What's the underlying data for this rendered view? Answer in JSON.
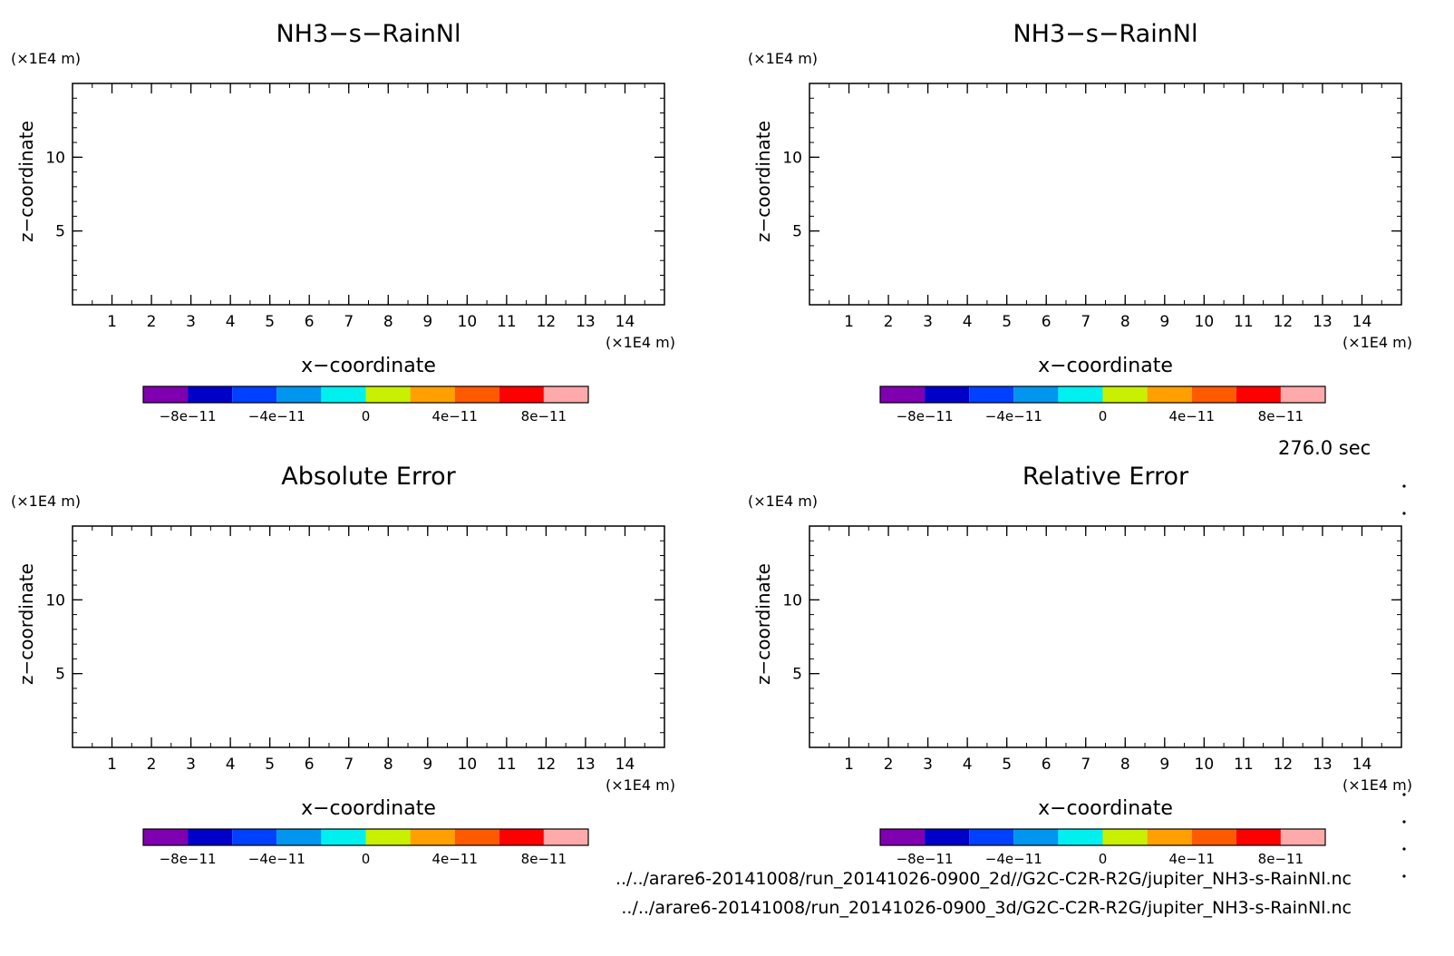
{
  "timestamp": "276.0 sec",
  "files": [
    "../../arare6-20141008/run_20141026-0900_2d//G2C-C2R-R2G/jupiter_NH3-s-RainNl.nc",
    "../../arare6-20141008/run_20141026-0900_3d/G2C-C2R-R2G/jupiter_NH3-s-RainNl.nc"
  ],
  "colorbar": {
    "colors": [
      "#7f00b0",
      "#0000c8",
      "#0040ff",
      "#0096f0",
      "#00f0f0",
      "#c8f000",
      "#ffa000",
      "#ff5a00",
      "#ff0000",
      "#ffaaaa"
    ],
    "labels": [
      "−8e−11",
      "−4e−11",
      "0",
      "4e−11",
      "8e−11"
    ],
    "label_values": [
      -8e-11,
      -4e-11,
      0,
      4e-11,
      8e-11
    ],
    "range": [
      -1e-10,
      1e-10
    ]
  },
  "chart_data": [
    {
      "type": "heatmap",
      "title": "NH3−s−RainNl",
      "xlabel": "x−coordinate",
      "ylabel": "z−coordinate",
      "x_unit": "(×1E4 m)",
      "y_unit": "(×1E4 m)",
      "xlim": [
        0,
        15
      ],
      "ylim": [
        0,
        15
      ],
      "xticks": [
        1,
        2,
        3,
        4,
        5,
        6,
        7,
        8,
        9,
        10,
        11,
        12,
        13,
        14
      ],
      "yticks": [
        5,
        10
      ],
      "values": []
    },
    {
      "type": "heatmap",
      "title": "NH3−s−RainNl",
      "xlabel": "x−coordinate",
      "ylabel": "z−coordinate",
      "x_unit": "(×1E4 m)",
      "y_unit": "(×1E4 m)",
      "xlim": [
        0,
        15
      ],
      "ylim": [
        0,
        15
      ],
      "xticks": [
        1,
        2,
        3,
        4,
        5,
        6,
        7,
        8,
        9,
        10,
        11,
        12,
        13,
        14
      ],
      "yticks": [
        5,
        10
      ],
      "values": []
    },
    {
      "type": "heatmap",
      "title": "Absolute Error",
      "xlabel": "x−coordinate",
      "ylabel": "z−coordinate",
      "x_unit": "(×1E4 m)",
      "y_unit": "(×1E4 m)",
      "xlim": [
        0,
        15
      ],
      "ylim": [
        0,
        15
      ],
      "xticks": [
        1,
        2,
        3,
        4,
        5,
        6,
        7,
        8,
        9,
        10,
        11,
        12,
        13,
        14
      ],
      "yticks": [
        5,
        10
      ],
      "values": []
    },
    {
      "type": "heatmap",
      "title": "Relative Error",
      "xlabel": "x−coordinate",
      "ylabel": "z−coordinate",
      "x_unit": "(×1E4 m)",
      "y_unit": "(×1E4 m)",
      "xlim": [
        0,
        15
      ],
      "ylim": [
        0,
        15
      ],
      "xticks": [
        1,
        2,
        3,
        4,
        5,
        6,
        7,
        8,
        9,
        10,
        11,
        12,
        13,
        14
      ],
      "yticks": [
        5,
        10
      ],
      "values": []
    }
  ]
}
